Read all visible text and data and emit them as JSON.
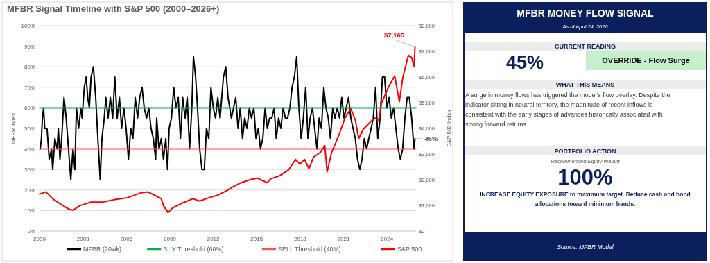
{
  "chart_data": [
    {
      "type": "line",
      "title": "MFBR Signal Timeline with S&P 500 (2000–2026+)",
      "ylabel": "MFBR Index",
      "y2label": "S&P 500 Index",
      "xlim": [
        2000,
        2026
      ],
      "xticks": [
        2000,
        2003,
        2006,
        2009,
        2012,
        2015,
        2018,
        2021,
        2024
      ],
      "ylim": [
        0,
        100
      ],
      "yticks": [
        {
          "value": 0,
          "label": "0%"
        },
        {
          "value": 10,
          "label": "10%"
        },
        {
          "value": 20,
          "label": "20%"
        },
        {
          "value": 30,
          "label": "30%"
        },
        {
          "value": 40,
          "label": "40%"
        },
        {
          "value": 50,
          "label": "50%"
        },
        {
          "value": 60,
          "label": "60%"
        },
        {
          "value": 70,
          "label": "70%"
        },
        {
          "value": 80,
          "label": "80%"
        },
        {
          "value": 90,
          "label": "90%"
        },
        {
          "value": 100,
          "label": "100%"
        }
      ],
      "y2lim": [
        0,
        8000
      ],
      "y2ticks": [
        {
          "value": 0,
          "label": "$0"
        },
        {
          "value": 1000,
          "label": "$1,000"
        },
        {
          "value": 2000,
          "label": "$2,000"
        },
        {
          "value": 3000,
          "label": "$3,000"
        },
        {
          "value": 4000,
          "label": "$4,000"
        },
        {
          "value": 5000,
          "label": "$5,000"
        },
        {
          "value": 6000,
          "label": "$6,000"
        },
        {
          "value": 7000,
          "label": "$7,000"
        },
        {
          "value": 8000,
          "label": "$8,000"
        }
      ],
      "grid": "y",
      "legend": "bottom",
      "series": [
        {
          "name": "MFBR (20wk)",
          "color": "#000000",
          "x": [
            2000.05,
            2000.13,
            2000.2,
            2000.28,
            2000.36,
            2000.52,
            2000.67,
            2000.83,
            2000.91,
            2001.06,
            2001.22,
            2001.3,
            2001.41,
            2001.53,
            2001.69,
            2001.84,
            2002.0,
            2002.16,
            2002.31,
            2002.44,
            2002.55,
            2002.7,
            2002.86,
            2002.94,
            2003.09,
            2003.22,
            2003.33,
            2003.44,
            2003.56,
            2003.72,
            2003.88,
            2004.03,
            2004.19,
            2004.31,
            2004.47,
            2004.58,
            2004.73,
            2004.89,
            2005.05,
            2005.2,
            2005.36,
            2005.52,
            2005.67,
            2005.83,
            2005.98,
            2006.14,
            2006.3,
            2006.45,
            2006.61,
            2006.77,
            2006.92,
            2007.08,
            2007.23,
            2007.39,
            2007.55,
            2007.7,
            2007.86,
            2008.02,
            2008.09,
            2008.25,
            2008.41,
            2008.56,
            2008.72,
            2008.84,
            2008.95,
            2009.11,
            2009.27,
            2009.42,
            2009.58,
            2009.73,
            2009.89,
            2010.05,
            2010.2,
            2010.36,
            2010.52,
            2010.63,
            2010.78,
            2010.91,
            2011.06,
            2011.22,
            2011.38,
            2011.53,
            2011.69,
            2011.84,
            2012.0,
            2012.16,
            2012.31,
            2012.47,
            2012.7,
            2012.86,
            2013.02,
            2013.25,
            2013.55,
            2013.71,
            2013.86,
            2014.02,
            2014.17,
            2014.33,
            2014.49,
            2014.64,
            2014.8,
            2014.95,
            2015.11,
            2015.26,
            2015.42,
            2015.58,
            2015.73,
            2015.89,
            2016.04,
            2016.2,
            2016.35,
            2016.51,
            2016.67,
            2016.82,
            2016.98,
            2017.13,
            2017.29,
            2017.44,
            2017.6,
            2017.76,
            2017.91,
            2018.07,
            2018.22,
            2018.38,
            2018.54,
            2018.69,
            2018.85,
            2019.0,
            2019.16,
            2019.31,
            2019.47,
            2019.63,
            2019.78,
            2019.94,
            2020.09,
            2020.25,
            2020.4,
            2020.56,
            2020.72,
            2020.87,
            2021.03,
            2021.18,
            2021.34,
            2021.5,
            2021.65,
            2021.81,
            2021.96,
            2022.12,
            2022.27,
            2022.43,
            2022.59,
            2022.74,
            2022.9,
            2023.05,
            2023.21,
            2023.36,
            2023.52,
            2023.68,
            2023.83,
            2023.99,
            2024.14,
            2024.3,
            2024.45,
            2024.61,
            2024.77,
            2024.92,
            2025.08,
            2025.23,
            2025.39,
            2025.54,
            2025.7,
            2025.86,
            2025.93
          ],
          "values": [
            40,
            45,
            55,
            60,
            50,
            50,
            35,
            40,
            30,
            45,
            40,
            50,
            35,
            45,
            65,
            55,
            40,
            25,
            40,
            30,
            60,
            50,
            60,
            55,
            70,
            75,
            65,
            60,
            75,
            80,
            65,
            45,
            25,
            45,
            55,
            65,
            55,
            65,
            55,
            75,
            55,
            65,
            50,
            60,
            50,
            35,
            50,
            45,
            65,
            55,
            65,
            70,
            60,
            55,
            60,
            50,
            45,
            35,
            55,
            40,
            45,
            35,
            45,
            30,
            50,
            55,
            70,
            60,
            65,
            45,
            65,
            55,
            65,
            40,
            60,
            85,
            75,
            60,
            40,
            30,
            30,
            50,
            45,
            70,
            60,
            55,
            65,
            55,
            75,
            80,
            65,
            55,
            65,
            50,
            60,
            45,
            55,
            50,
            60,
            55,
            60,
            45,
            50,
            40,
            45,
            60,
            50,
            55,
            55,
            60,
            45,
            55,
            50,
            60,
            55,
            55,
            60,
            70,
            75,
            85,
            60,
            45,
            55,
            70,
            45,
            55,
            60,
            50,
            40,
            55,
            50,
            70,
            60,
            55,
            45,
            60,
            55,
            60,
            55,
            65,
            55,
            60,
            65,
            55,
            50,
            45,
            35,
            30,
            35,
            45,
            40,
            45,
            50,
            55,
            70,
            45,
            55,
            75,
            75,
            60,
            65,
            55,
            60,
            50,
            40,
            35,
            40,
            55,
            65,
            65,
            55,
            40,
            45
          ],
          "value_labels": [
            null,
            null,
            null,
            null,
            null,
            null,
            null,
            null,
            null,
            null,
            null,
            null,
            null,
            null,
            null,
            null,
            null,
            null,
            null,
            null,
            null,
            null,
            null,
            null,
            null,
            null,
            null,
            null,
            null,
            null,
            null,
            null,
            null,
            null,
            null,
            null,
            null,
            null,
            null,
            null,
            null,
            null,
            null,
            null,
            null,
            null,
            null,
            null,
            null,
            null,
            null,
            null,
            null,
            null,
            null,
            null,
            null,
            null,
            null,
            null,
            null,
            null,
            null,
            null,
            null,
            null,
            null,
            null,
            null,
            null,
            null,
            null,
            null,
            null,
            null,
            null,
            null,
            null,
            null,
            null,
            null,
            null,
            null,
            null,
            null,
            null,
            null,
            null,
            null,
            null,
            null,
            null,
            null,
            null,
            null,
            null,
            null,
            null,
            null,
            null,
            null,
            null,
            null,
            null,
            null,
            null,
            null,
            null,
            null,
            null,
            null,
            null,
            null,
            null,
            null,
            null,
            null,
            null,
            null,
            null,
            null,
            null,
            null,
            null,
            null,
            null,
            null,
            null,
            null,
            null,
            null,
            null,
            null,
            null,
            null,
            null,
            null,
            null,
            null,
            null,
            null,
            null,
            null,
            null,
            null,
            null,
            null,
            null,
            null,
            null,
            null,
            null,
            null,
            null,
            null,
            null,
            null,
            null,
            null,
            null,
            null,
            null,
            null,
            null,
            null,
            null,
            null,
            null,
            null,
            null,
            null,
            null,
            "45%"
          ]
        },
        {
          "name": "BUY Threshold (60%)",
          "color": "#00b050",
          "x": [
            2000,
            2026
          ],
          "values": [
            60,
            60
          ]
        },
        {
          "name": "SELL Threshold (40%)",
          "color": "#ff5050",
          "x": [
            2000,
            2026
          ],
          "values": [
            40,
            40
          ]
        },
        {
          "name": "S&P 500",
          "color": "#ff0000",
          "axis": "y2",
          "x": [
            2000.0,
            2000.44,
            2000.91,
            2001.38,
            2002.0,
            2002.31,
            2002.78,
            2003.56,
            2004.34,
            2005.13,
            2006.06,
            2007.0,
            2007.47,
            2007.94,
            2008.41,
            2008.56,
            2008.88,
            2009.19,
            2009.81,
            2010.59,
            2011.06,
            2011.69,
            2012.31,
            2012.94,
            2013.32,
            2013.78,
            2014.41,
            2015.03,
            2015.34,
            2015.73,
            2015.96,
            2016.59,
            2017.21,
            2017.68,
            2017.99,
            2018.3,
            2018.61,
            2018.92,
            2019.39,
            2019.7,
            2019.86,
            2020.17,
            2020.64,
            2021.1,
            2021.5,
            2021.81,
            2022.04,
            2022.35,
            2022.66,
            2023.13,
            2023.44,
            2023.6,
            2024.07,
            2024.53,
            2024.85,
            2025.08,
            2025.47,
            2025.7,
            2025.86,
            2025.93
          ],
          "values": [
            1440,
            1530,
            1260,
            1080,
            860,
            810,
            990,
            1130,
            1130,
            1220,
            1300,
            1490,
            1530,
            1400,
            1260,
            990,
            720,
            900,
            1080,
            1260,
            1170,
            1300,
            1400,
            1580,
            1710,
            1850,
            1980,
            2070,
            1980,
            1890,
            2030,
            2160,
            2390,
            2790,
            2610,
            2790,
            2430,
            2880,
            3060,
            3330,
            2300,
            3060,
            3690,
            4410,
            4770,
            4320,
            3600,
            3960,
            4140,
            4410,
            4320,
            4950,
            5580,
            6040,
            5040,
            5950,
            6850,
            6760,
            6400,
            7165
          ],
          "value_labels": [
            null,
            null,
            null,
            null,
            null,
            null,
            null,
            null,
            null,
            null,
            null,
            null,
            null,
            null,
            null,
            null,
            null,
            null,
            null,
            null,
            null,
            null,
            null,
            null,
            null,
            null,
            null,
            null,
            null,
            null,
            null,
            null,
            null,
            null,
            null,
            null,
            null,
            null,
            null,
            null,
            null,
            null,
            null,
            null,
            null,
            null,
            null,
            null,
            null,
            null,
            null,
            null,
            null,
            null,
            null,
            null,
            null,
            null,
            null,
            "$7,165"
          ]
        }
      ]
    },
    {
      "type": "other",
      "title": "MFBR MONEY FLOW SIGNAL",
      "subtitle": "As of April 24, 2026",
      "annotations": [
        "CURRENT READING",
        "45%",
        "OVERRIDE - Flow Surge",
        "WHAT THIS MEANS",
        "A surge in money flows has triggered the model's flow overlay. Despite the indicator sitting in neutral territory, the magnitude of recent inflows is consistent with the early stages of advances historically associated with strong forward returns.",
        "PORTFOLIO ACTION",
        "Recommended Equity Weight",
        "100%",
        "INCREASE EQUITY EXPOSURE to maximum target. Reduce cash and bond allocations toward minimum bands.",
        "Source: MFBR Model"
      ]
    }
  ]
}
